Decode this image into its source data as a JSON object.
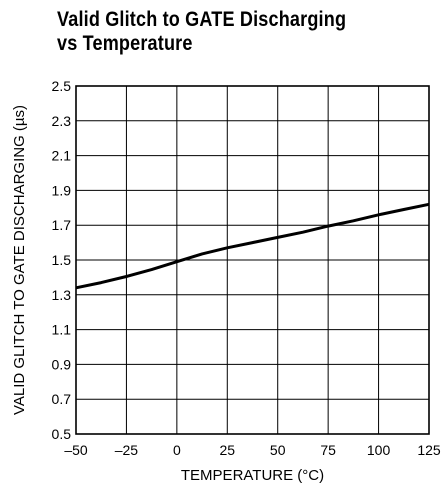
{
  "title_line1": "Valid Glitch to GATE Discharging",
  "title_line2": "vs Temperature",
  "chart_data": {
    "type": "line",
    "title": "Valid Glitch to GATE Discharging vs Temperature",
    "xlabel": "TEMPERATURE (°C)",
    "ylabel": "VALID GLITCH TO GATE DISCHARGING (µs)",
    "xlim": [
      -50,
      125
    ],
    "ylim": [
      0.5,
      2.5
    ],
    "x_ticks": [
      -50,
      -25,
      0,
      25,
      50,
      75,
      100,
      125
    ],
    "x_tick_labels": [
      "–50",
      "–25",
      "0",
      "25",
      "50",
      "75",
      "100",
      "125"
    ],
    "y_ticks": [
      0.5,
      0.7,
      0.9,
      1.1,
      1.3,
      1.5,
      1.7,
      1.9,
      2.1,
      2.3,
      2.5
    ],
    "y_tick_labels": [
      "0.5",
      "0.7",
      "0.9",
      "1.1",
      "1.3",
      "1.5",
      "1.7",
      "1.9",
      "2.1",
      "2.3",
      "2.5"
    ],
    "grid": true,
    "series": [
      {
        "x": [
          -50,
          -37.5,
          -25,
          -12.5,
          0,
          12.5,
          25,
          37.5,
          50,
          62.5,
          75,
          87.5,
          100,
          112.5,
          125
        ],
        "y": [
          1.34,
          1.37,
          1.405,
          1.445,
          1.49,
          1.535,
          1.57,
          1.6,
          1.63,
          1.66,
          1.695,
          1.725,
          1.76,
          1.79,
          1.82
        ]
      }
    ]
  }
}
